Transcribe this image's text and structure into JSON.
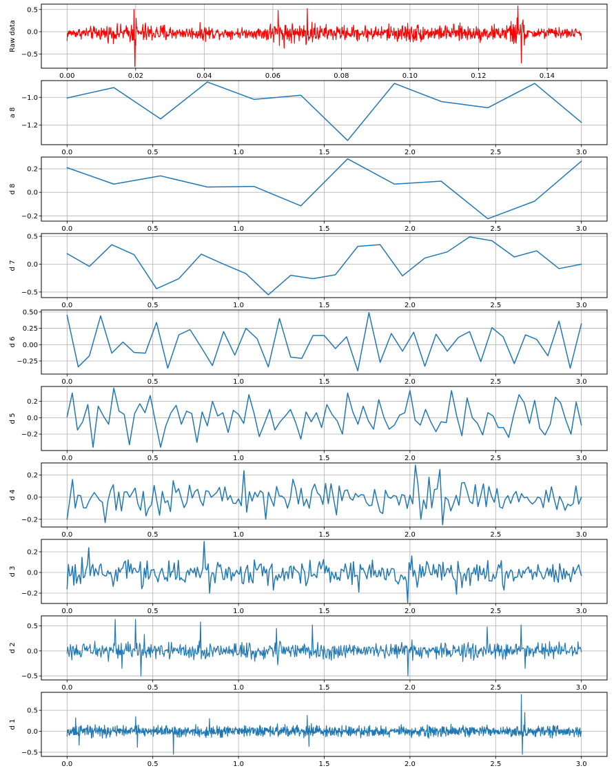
{
  "chart_data": [
    {
      "id": "raw",
      "type": "line",
      "ylabel": "Raw data",
      "color": "#ff0000",
      "grid": true,
      "xlim": [
        -0.0075,
        0.1575
      ],
      "ylim": [
        -0.82,
        0.62
      ],
      "xticks": [
        0.0,
        0.02,
        0.04,
        0.06,
        0.08,
        0.1,
        0.12,
        0.14
      ],
      "xtick_labels": [
        "0.00",
        "0.02",
        "0.04",
        "0.06",
        "0.08",
        "0.10",
        "0.12",
        "0.14"
      ],
      "yticks": [
        -0.5,
        0.0,
        0.5
      ],
      "ytick_labels": [
        "−0.5",
        "0.0",
        "0.5"
      ],
      "x_range": [
        0.0,
        0.15
      ],
      "point_count": 1200,
      "envelope": [
        [
          0.0,
          0.15
        ],
        [
          0.004,
          0.2
        ],
        [
          0.008,
          0.25
        ],
        [
          0.012,
          0.3
        ],
        [
          0.015,
          0.3
        ],
        [
          0.018,
          0.28
        ],
        [
          0.0195,
          0.5
        ],
        [
          0.0198,
          -0.78
        ],
        [
          0.022,
          0.4
        ],
        [
          0.026,
          0.3
        ],
        [
          0.029,
          0.35
        ],
        [
          0.032,
          0.2
        ],
        [
          0.036,
          0.22
        ],
        [
          0.04,
          0.3
        ],
        [
          0.045,
          0.18
        ],
        [
          0.05,
          0.2
        ],
        [
          0.054,
          0.17
        ],
        [
          0.058,
          0.3
        ],
        [
          0.0615,
          0.48
        ],
        [
          0.065,
          0.4
        ],
        [
          0.068,
          0.3
        ],
        [
          0.07,
          0.52
        ],
        [
          0.074,
          0.28
        ],
        [
          0.078,
          0.3
        ],
        [
          0.082,
          0.25
        ],
        [
          0.086,
          0.3
        ],
        [
          0.09,
          0.28
        ],
        [
          0.094,
          0.3
        ],
        [
          0.098,
          0.35
        ],
        [
          0.1,
          0.4
        ],
        [
          0.104,
          0.3
        ],
        [
          0.108,
          0.25
        ],
        [
          0.112,
          0.3
        ],
        [
          0.116,
          0.3
        ],
        [
          0.12,
          0.3
        ],
        [
          0.124,
          0.28
        ],
        [
          0.128,
          0.3
        ],
        [
          0.1315,
          0.58
        ],
        [
          0.1325,
          -0.7
        ],
        [
          0.136,
          0.25
        ],
        [
          0.14,
          0.2
        ],
        [
          0.145,
          0.2
        ],
        [
          0.15,
          0.15
        ]
      ],
      "first_value": -0.2,
      "last_value": -0.18
    },
    {
      "id": "a8",
      "type": "line",
      "ylabel": "a 8",
      "color": "#1f77b4",
      "grid": true,
      "xlim": [
        -0.15,
        3.15
      ],
      "ylim": [
        -1.34,
        -0.88
      ],
      "xticks": [
        0.0,
        0.5,
        1.0,
        1.5,
        2.0,
        2.5,
        3.0
      ],
      "xtick_labels": [
        "0.0",
        "0.5",
        "1.0",
        "1.5",
        "2.0",
        "2.5",
        "3.0"
      ],
      "yticks": [
        -1.2,
        -1.0
      ],
      "ytick_labels": [
        "−1.2",
        "−1.0"
      ],
      "x": [
        0.0,
        0.2727,
        0.5455,
        0.8182,
        1.0909,
        1.3636,
        1.6364,
        1.9091,
        2.1818,
        2.4545,
        2.7273,
        3.0
      ],
      "y": [
        -1.005,
        -0.93,
        -1.155,
        -0.89,
        -1.015,
        -0.985,
        -1.31,
        -0.9,
        -1.03,
        -1.075,
        -0.9,
        -1.18
      ]
    },
    {
      "id": "d8",
      "type": "line",
      "ylabel": "d 8",
      "color": "#1f77b4",
      "grid": true,
      "xlim": [
        -0.15,
        3.15
      ],
      "ylim": [
        -0.245,
        0.3
      ],
      "xticks": [
        0.0,
        0.5,
        1.0,
        1.5,
        2.0,
        2.5,
        3.0
      ],
      "xtick_labels": [
        "0.0",
        "0.5",
        "1.0",
        "1.5",
        "2.0",
        "2.5",
        "3.0"
      ],
      "yticks": [
        -0.2,
        0.0,
        0.2
      ],
      "ytick_labels": [
        "−0.2",
        "0.0",
        "0.2"
      ],
      "x": [
        0.0,
        0.2727,
        0.5455,
        0.8182,
        1.0909,
        1.3636,
        1.6364,
        1.9091,
        2.1818,
        2.4545,
        2.7273,
        3.0
      ],
      "y": [
        0.21,
        0.07,
        0.14,
        0.045,
        0.05,
        -0.115,
        0.285,
        0.07,
        0.095,
        -0.225,
        -0.075,
        0.265
      ]
    },
    {
      "id": "d7",
      "type": "line",
      "ylabel": "d 7",
      "color": "#1f77b4",
      "grid": true,
      "xlim": [
        -0.15,
        3.15
      ],
      "ylim": [
        -0.6,
        0.55
      ],
      "xticks": [
        0.0,
        0.5,
        1.0,
        1.5,
        2.0,
        2.5,
        3.0
      ],
      "xtick_labels": [
        "0.0",
        "0.5",
        "1.0",
        "1.5",
        "2.0",
        "2.5",
        "3.0"
      ],
      "yticks": [
        -0.5,
        0.0,
        0.5
      ],
      "ytick_labels": [
        "−0.5",
        "0.0",
        "0.5"
      ],
      "x": [
        0.0,
        0.1304,
        0.2609,
        0.3913,
        0.5217,
        0.6522,
        0.7826,
        0.913,
        1.0435,
        1.1739,
        1.3043,
        1.4348,
        1.5652,
        1.6957,
        1.8261,
        1.9565,
        2.087,
        2.2174,
        2.3478,
        2.4783,
        2.6087,
        2.7391,
        2.8696,
        3.0
      ],
      "y": [
        0.19,
        -0.04,
        0.35,
        0.17,
        -0.44,
        -0.26,
        0.18,
        0.0,
        -0.17,
        -0.55,
        -0.2,
        -0.26,
        -0.19,
        0.32,
        0.35,
        -0.21,
        0.11,
        0.22,
        0.49,
        0.42,
        0.13,
        0.24,
        -0.08,
        0.0
      ]
    },
    {
      "id": "d6",
      "type": "line",
      "ylabel": "d 6",
      "color": "#1f77b4",
      "grid": true,
      "xlim": [
        -0.15,
        3.15
      ],
      "ylim": [
        -0.45,
        0.53
      ],
      "xticks": [
        0.0,
        0.5,
        1.0,
        1.5,
        2.0,
        2.5,
        3.0
      ],
      "xtick_labels": [
        "0.0",
        "0.5",
        "1.0",
        "1.5",
        "2.0",
        "2.5",
        "3.0"
      ],
      "yticks": [
        -0.25,
        0.0,
        0.25,
        0.5
      ],
      "ytick_labels": [
        "−0.25",
        "0.00",
        "0.25",
        "0.50"
      ],
      "x": [
        0.0,
        0.0652,
        0.1304,
        0.1957,
        0.2609,
        0.3261,
        0.3913,
        0.4565,
        0.5217,
        0.587,
        0.6522,
        0.7174,
        0.7826,
        0.8478,
        0.913,
        0.9783,
        1.0435,
        1.1087,
        1.1739,
        1.2391,
        1.3043,
        1.3696,
        1.4348,
        1.5,
        1.5652,
        1.6304,
        1.6957,
        1.7609,
        1.8261,
        1.8913,
        1.9565,
        2.0217,
        2.087,
        2.1522,
        2.2174,
        2.2826,
        2.3478,
        2.413,
        2.4783,
        2.5435,
        2.6087,
        2.6739,
        2.7391,
        2.8043,
        2.8696,
        2.9348,
        3.0
      ],
      "y": [
        0.45,
        -0.34,
        -0.17,
        0.44,
        -0.13,
        0.04,
        -0.12,
        -0.13,
        0.34,
        -0.36,
        0.15,
        0.23,
        -0.04,
        -0.32,
        0.2,
        -0.16,
        0.25,
        0.09,
        -0.34,
        0.4,
        -0.19,
        -0.21,
        0.14,
        0.14,
        -0.06,
        0.12,
        -0.4,
        0.49,
        -0.27,
        0.17,
        -0.1,
        0.19,
        -0.33,
        0.16,
        -0.1,
        0.11,
        0.2,
        -0.26,
        0.26,
        0.12,
        -0.29,
        0.15,
        0.08,
        -0.17,
        0.36,
        -0.36,
        0.32
      ]
    },
    {
      "id": "d5",
      "type": "line",
      "ylabel": "d 5",
      "color": "#1f77b4",
      "grid": true,
      "xlim": [
        -0.15,
        3.15
      ],
      "ylim": [
        -0.4,
        0.38
      ],
      "xticks": [
        0.0,
        0.5,
        1.0,
        1.5,
        2.0,
        2.5,
        3.0
      ],
      "xtick_labels": [
        "0.0",
        "0.5",
        "1.0",
        "1.5",
        "2.0",
        "2.5",
        "3.0"
      ],
      "yticks": [
        -0.2,
        0.0,
        0.2
      ],
      "ytick_labels": [
        "−0.2",
        "0.0",
        "0.2"
      ],
      "x_range": [
        0.0,
        3.0
      ],
      "y": [
        0.01,
        0.3,
        -0.15,
        -0.05,
        0.16,
        -0.36,
        0.14,
        0.02,
        -0.08,
        0.36,
        0.08,
        0.04,
        -0.33,
        0.05,
        0.17,
        0.06,
        0.27,
        -0.05,
        -0.36,
        -0.1,
        0.06,
        0.15,
        -0.08,
        0.08,
        0.05,
        -0.3,
        0.07,
        -0.1,
        0.2,
        0.02,
        0.06,
        -0.18,
        0.09,
        0.04,
        -0.07,
        0.28,
        0.05,
        -0.23,
        -0.07,
        0.1,
        -0.15,
        -0.05,
        0.02,
        0.1,
        -0.06,
        -0.26,
        0.07,
        -0.05,
        0.06,
        -0.12,
        0.16,
        0.04,
        -0.04,
        -0.2,
        0.3,
        0.07,
        -0.08,
        0.14,
        -0.04,
        -0.14,
        0.22,
        0.0,
        -0.14,
        -0.09,
        0.03,
        0.06,
        0.33,
        -0.03,
        -0.09,
        0.1,
        -0.05,
        -0.17,
        -0.05,
        -0.06,
        0.33,
        0.02,
        -0.22,
        0.24,
        0.0,
        -0.07,
        -0.21,
        0.06,
        0.02,
        -0.12,
        -0.12,
        -0.24,
        0.04,
        0.28,
        0.18,
        -0.07,
        0.21,
        -0.13,
        -0.21,
        -0.08,
        0.25,
        0.18,
        -0.03,
        -0.2,
        0.19,
        -0.09
      ]
    },
    {
      "id": "d4",
      "type": "line",
      "ylabel": "d 4",
      "color": "#1f77b4",
      "grid": true,
      "xlim": [
        -0.15,
        3.15
      ],
      "ylim": [
        -0.27,
        0.31
      ],
      "xticks": [
        0.0,
        0.5,
        1.0,
        1.5,
        2.0,
        2.5,
        3.0
      ],
      "xtick_labels": [
        "0.0",
        "0.5",
        "1.0",
        "1.5",
        "2.0",
        "2.5",
        "3.0"
      ],
      "yticks": [
        -0.2,
        0.0,
        0.2
      ],
      "ytick_labels": [
        "−0.2",
        "0.0",
        "0.2"
      ],
      "x_range": [
        0.0,
        3.0
      ],
      "point_count": 190,
      "amplitude": 0.14,
      "first_value": -0.2,
      "last_value": 0.0,
      "peaks": [
        [
          0.03,
          0.16
        ],
        [
          0.23,
          -0.23
        ],
        [
          1.03,
          0.24
        ],
        [
          1.16,
          -0.2
        ],
        [
          1.57,
          -0.16
        ],
        [
          2.03,
          0.29
        ],
        [
          2.07,
          -0.2
        ],
        [
          2.18,
          0.25
        ],
        [
          2.19,
          -0.25
        ]
      ]
    },
    {
      "id": "d3",
      "type": "line",
      "ylabel": "d 3",
      "color": "#1f77b4",
      "grid": true,
      "xlim": [
        -0.15,
        3.15
      ],
      "ylim": [
        -0.3,
        0.32
      ],
      "xticks": [
        0.0,
        0.5,
        1.0,
        1.5,
        2.0,
        2.5,
        3.0
      ],
      "xtick_labels": [
        "0.0",
        "0.5",
        "1.0",
        "1.5",
        "2.0",
        "2.5",
        "3.0"
      ],
      "yticks": [
        -0.2,
        0.0,
        0.2
      ],
      "ytick_labels": [
        "−0.2",
        "0.0",
        "0.2"
      ],
      "x_range": [
        0.0,
        3.0
      ],
      "point_count": 380,
      "amplitude": 0.11,
      "first_value": -0.16,
      "last_value": -0.03,
      "peaks": [
        [
          0.13,
          0.24
        ],
        [
          0.8,
          0.3
        ],
        [
          0.83,
          -0.2
        ],
        [
          1.2,
          -0.17
        ],
        [
          1.7,
          -0.19
        ],
        [
          1.99,
          -0.29
        ],
        [
          2.01,
          0.16
        ],
        [
          2.27,
          -0.21
        ],
        [
          2.55,
          -0.17
        ]
      ]
    },
    {
      "id": "d2",
      "type": "line",
      "ylabel": "d 2",
      "color": "#1f77b4",
      "grid": true,
      "xlim": [
        -0.15,
        3.15
      ],
      "ylim": [
        -0.58,
        0.7
      ],
      "xticks": [
        0.0,
        0.5,
        1.0,
        1.5,
        2.0,
        2.5,
        3.0
      ],
      "xtick_labels": [
        "0.0",
        "0.5",
        "1.0",
        "1.5",
        "2.0",
        "2.5",
        "3.0"
      ],
      "yticks": [
        -0.5,
        0.0,
        0.5
      ],
      "ytick_labels": [
        "−0.5",
        "0.0",
        "0.5"
      ],
      "x_range": [
        0.0,
        3.0
      ],
      "point_count": 760,
      "amplitude": 0.15,
      "first_value": -0.05,
      "last_value": -0.02,
      "peaks": [
        [
          0.28,
          0.63
        ],
        [
          0.32,
          -0.35
        ],
        [
          0.4,
          0.63
        ],
        [
          0.43,
          -0.5
        ],
        [
          0.45,
          0.33
        ],
        [
          0.78,
          0.58
        ],
        [
          1.22,
          0.45
        ],
        [
          1.23,
          -0.28
        ],
        [
          1.43,
          0.52
        ],
        [
          1.99,
          -0.5
        ],
        [
          2.01,
          0.22
        ],
        [
          2.45,
          0.48
        ],
        [
          2.65,
          0.52
        ],
        [
          2.67,
          -0.35
        ]
      ]
    },
    {
      "id": "d1",
      "type": "line",
      "ylabel": "d 1",
      "color": "#1f77b4",
      "grid": true,
      "xlim": [
        -0.15,
        3.15
      ],
      "ylim": [
        -0.6,
        0.93
      ],
      "xticks": [
        0.0,
        0.5,
        1.0,
        1.5,
        2.0,
        2.5,
        3.0
      ],
      "xtick_labels": [
        "0.0",
        "0.5",
        "1.0",
        "1.5",
        "2.0",
        "2.5",
        "3.0"
      ],
      "yticks": [
        -0.5,
        0.0,
        0.5
      ],
      "ytick_labels": [
        "−0.5",
        "0.0",
        "0.5"
      ],
      "x_range": [
        0.0,
        3.0
      ],
      "point_count": 1500,
      "amplitude": 0.12,
      "first_value": -0.12,
      "last_value": 0.0,
      "peaks": [
        [
          0.05,
          0.32
        ],
        [
          0.07,
          -0.33
        ],
        [
          0.4,
          0.35
        ],
        [
          0.41,
          -0.38
        ],
        [
          0.62,
          -0.55
        ],
        [
          0.83,
          0.3
        ],
        [
          1.4,
          0.38
        ],
        [
          1.41,
          -0.36
        ],
        [
          2.65,
          0.88
        ],
        [
          2.655,
          -0.55
        ],
        [
          2.67,
          0.45
        ]
      ]
    }
  ]
}
